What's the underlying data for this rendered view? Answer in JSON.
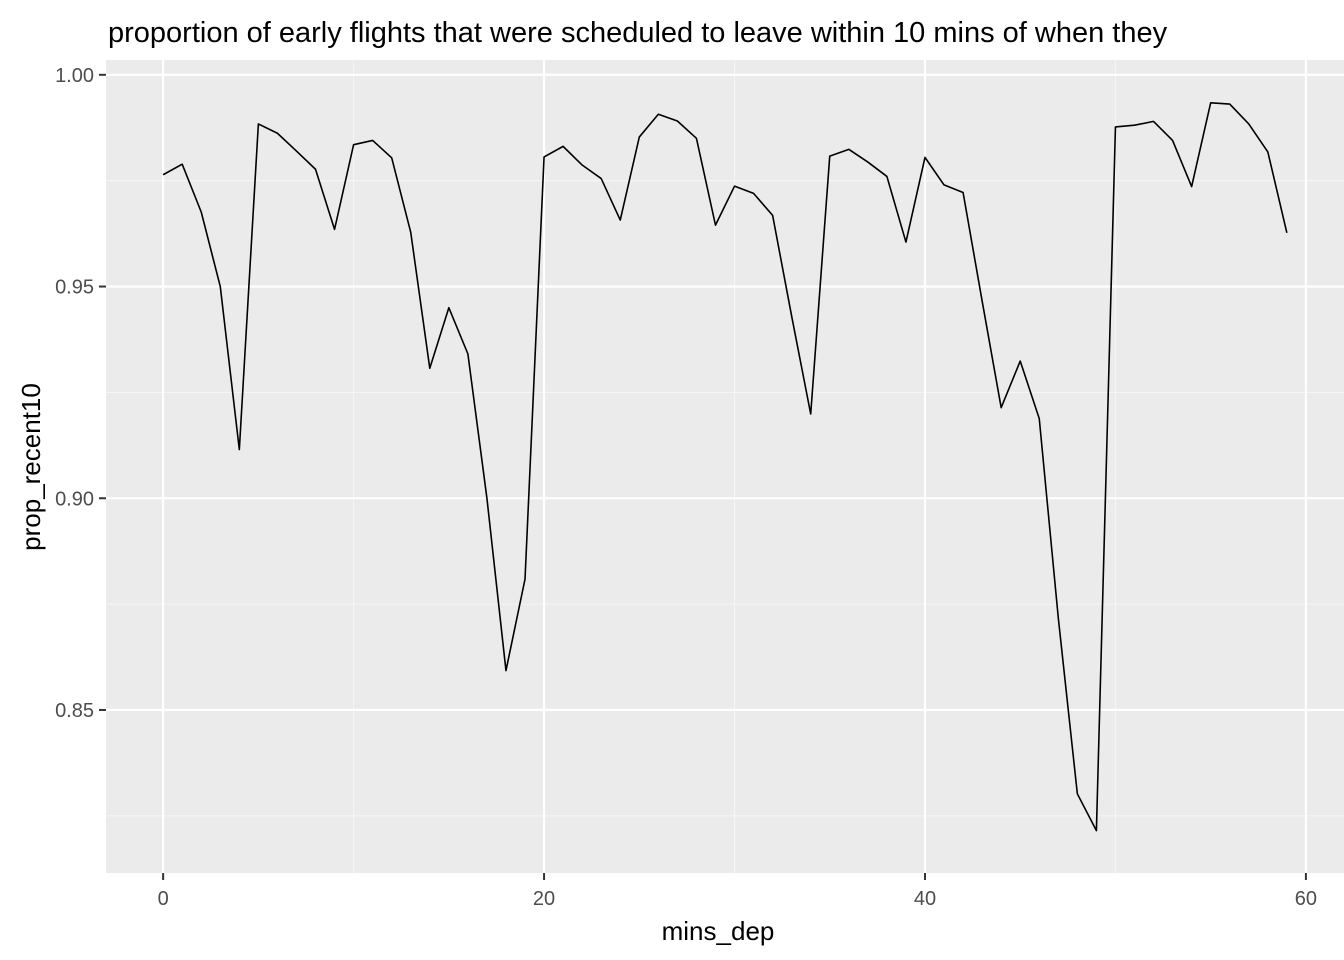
{
  "chart_data": {
    "type": "line",
    "title": "proportion of early flights that were scheduled to leave within 10 mins of when they",
    "xlabel": "mins_dep",
    "ylabel": "prop_recent10",
    "xlim": [
      -3,
      62
    ],
    "ylim": [
      0.8115,
      1.0035
    ],
    "x_ticks": [
      0,
      20,
      40,
      60
    ],
    "x_tick_labels": [
      "0",
      "20",
      "40",
      "60"
    ],
    "y_ticks": [
      0.85,
      0.9,
      0.95,
      1.0
    ],
    "y_tick_labels": [
      "0.85",
      "0.90",
      "0.95",
      "1.00"
    ],
    "grid": true,
    "legend": "none",
    "colors": {
      "panel_background": "#ebebeb",
      "grid_major": "#ffffff",
      "grid_minor": "#f5f5f5",
      "line": "#000000",
      "tick_text": "#4d4d4d"
    },
    "series": [
      {
        "x": [
          0,
          1,
          2,
          3,
          4,
          5,
          6,
          7,
          8,
          9,
          10,
          11,
          12,
          13,
          14,
          15,
          16,
          17,
          18,
          19,
          20,
          21,
          22,
          23,
          24,
          25,
          26,
          27,
          28,
          29,
          30,
          31,
          32,
          33,
          34,
          35,
          36,
          37,
          38,
          39,
          40,
          41,
          42,
          43,
          44,
          45,
          46,
          47,
          48,
          49,
          50,
          51,
          52,
          53,
          54,
          55,
          56,
          57,
          58,
          59
        ],
        "values": [
          0.9764,
          0.9789,
          0.9676,
          0.95,
          0.9115,
          0.9884,
          0.9862,
          0.982,
          0.9777,
          0.9635,
          0.9835,
          0.9845,
          0.9804,
          0.9628,
          0.9307,
          0.945,
          0.9341,
          0.9,
          0.8593,
          0.8809,
          0.9806,
          0.9831,
          0.9787,
          0.9755,
          0.9657,
          0.9853,
          0.9907,
          0.9891,
          0.985,
          0.9645,
          0.9737,
          0.972,
          0.9668,
          0.943,
          0.9199,
          0.9808,
          0.9824,
          0.9794,
          0.976,
          0.9605,
          0.9805,
          0.974,
          0.9722,
          0.9466,
          0.9214,
          0.9324,
          0.9188,
          0.8717,
          0.8302,
          0.8215,
          0.9877,
          0.9881,
          0.989,
          0.9845,
          0.9736,
          0.9934,
          0.9931,
          0.9884,
          0.9818,
          0.9627
        ]
      }
    ]
  }
}
